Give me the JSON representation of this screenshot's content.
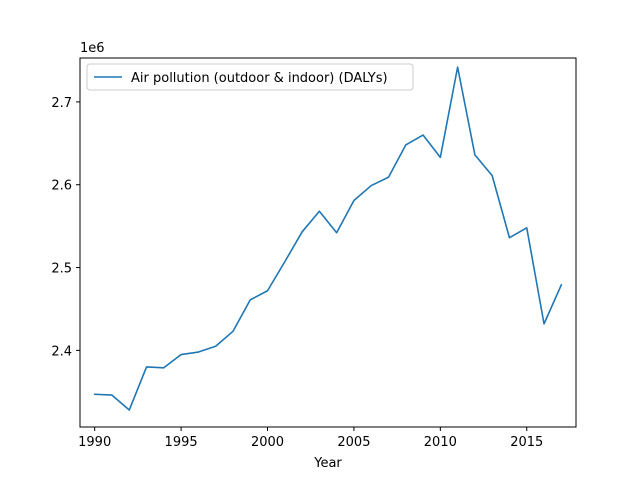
{
  "chart_data": {
    "type": "line",
    "title": "",
    "xlabel": "Year",
    "ylabel": "",
    "y_offset_label": "1e6",
    "xlim": [
      1989.15,
      2017.85
    ],
    "ylim": [
      2307500,
      2753000
    ],
    "x_ticks": [
      1990,
      1995,
      2000,
      2005,
      2010,
      2015
    ],
    "y_ticks": [
      2400000,
      2500000,
      2600000,
      2700000
    ],
    "y_tick_labels": [
      "2.4",
      "2.5",
      "2.6",
      "2.7"
    ],
    "grid": false,
    "legend_position": "upper-left",
    "series": [
      {
        "name": "Air pollution (outdoor & indoor) (DALYs)",
        "color": "#1f77b4",
        "x": [
          1990,
          1991,
          1992,
          1993,
          1994,
          1995,
          1996,
          1997,
          1998,
          1999,
          2000,
          2001,
          2002,
          2003,
          2004,
          2005,
          2006,
          2007,
          2008,
          2009,
          2010,
          2011,
          2012,
          2013,
          2014,
          2015,
          2016,
          2017
        ],
        "y": [
          2347000,
          2346000,
          2328000,
          2380000,
          2379000,
          2395000,
          2398000,
          2405000,
          2423000,
          2461000,
          2472000,
          2507000,
          2543000,
          2568000,
          2542000,
          2581000,
          2599000,
          2609000,
          2648000,
          2660000,
          2633000,
          2742000,
          2636000,
          2611000,
          2536000,
          2548000,
          2432000,
          2479000
        ]
      }
    ]
  }
}
